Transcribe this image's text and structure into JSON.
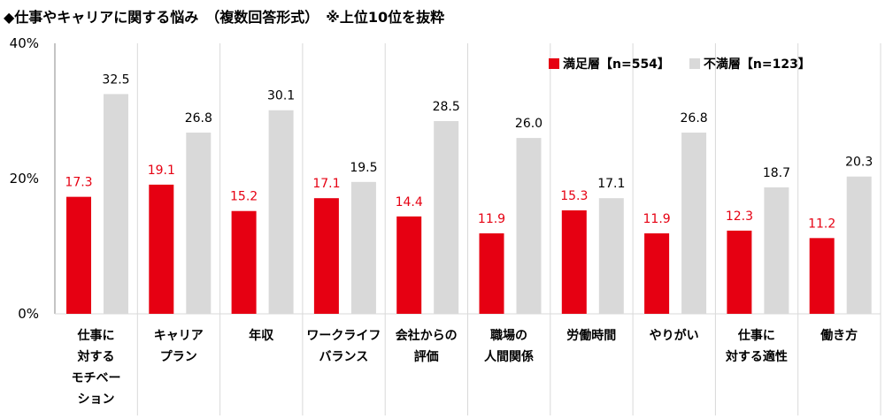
{
  "chart_data": {
    "type": "bar",
    "title": "◆仕事やキャリアに関する悩み　（複数回答形式）　※上位10位を抜粋",
    "categories": [
      [
        "仕事に",
        "対する",
        "モチベー",
        "ション"
      ],
      [
        "キャリア",
        "プラン"
      ],
      [
        "年収"
      ],
      [
        "ワークライフ",
        "バランス"
      ],
      [
        "会社からの",
        "評価"
      ],
      [
        "職場の",
        "人間関係"
      ],
      [
        "労働時間"
      ],
      [
        "やりがい"
      ],
      [
        "仕事に",
        "対する適性"
      ],
      [
        "働き方"
      ]
    ],
    "series": [
      {
        "name": "満足層【n=554】",
        "color": "#e60012",
        "label_color": "#e60012",
        "values": [
          17.3,
          19.1,
          15.2,
          17.1,
          14.4,
          11.9,
          15.3,
          11.9,
          12.3,
          11.2
        ]
      },
      {
        "name": "不満層【n=123】",
        "color": "#d9d9d9",
        "label_color": "#000000",
        "values": [
          32.5,
          26.8,
          30.1,
          19.5,
          28.5,
          26.0,
          17.1,
          26.8,
          18.7,
          20.3
        ]
      }
    ],
    "yticks": [
      "0%",
      "20%",
      "40%"
    ],
    "ylim": [
      0,
      40
    ],
    "grid": true,
    "legend": "top-right"
  }
}
